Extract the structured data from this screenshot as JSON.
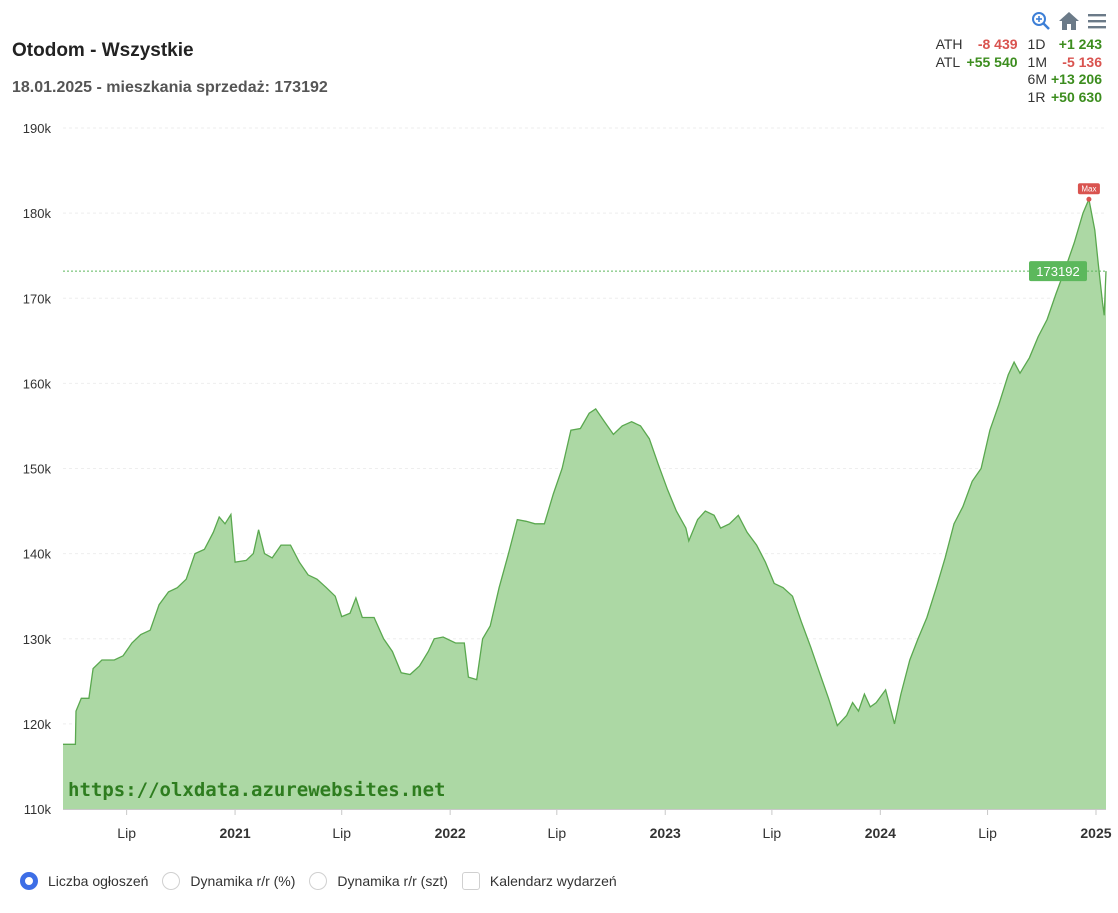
{
  "header": {
    "title": "Otodom - Wszystkie",
    "subtitle": "18.01.2025 - mieszkania sprzedaż: 173192"
  },
  "toolbar": {
    "icons": [
      "zoom-icon",
      "home-icon",
      "menu-icon"
    ]
  },
  "stats": [
    {
      "label": "ATH",
      "value": "-8 439",
      "sign": "neg",
      "label2": "1D",
      "value2": "+1 243",
      "sign2": "pos"
    },
    {
      "label": "ATL",
      "value": "+55 540",
      "sign": "pos",
      "label2": "1M",
      "value2": "-5 136",
      "sign2": "neg"
    },
    {
      "label": "",
      "value": "",
      "sign": "",
      "label2": "6M",
      "value2": "+13 206",
      "sign2": "pos"
    },
    {
      "label": "",
      "value": "",
      "sign": "",
      "label2": "1R",
      "value2": "+50 630",
      "sign2": "pos"
    }
  ],
  "watermark": "https://olxdata.azurewebsites.net",
  "legend": [
    {
      "label": "Liczba ogłoszeń",
      "type": "radio",
      "checked": true
    },
    {
      "label": "Dynamika r/r (%)",
      "type": "radio",
      "checked": false
    },
    {
      "label": "Dynamika r/r (szt)",
      "type": "radio",
      "checked": false
    },
    {
      "label": "Kalendarz wydarzeń",
      "type": "checkbox",
      "checked": false
    }
  ],
  "colors": {
    "fill": "#acd8a4",
    "line": "#5aa84f",
    "current_label_bg": "#5cb85c",
    "max_label_bg": "#d9534f"
  },
  "chart_data": {
    "type": "area",
    "y_ticks": [
      "110k",
      "120k",
      "130k",
      "140k",
      "150k",
      "160k",
      "170k",
      "180k",
      "190k"
    ],
    "ylim": [
      110000,
      190000
    ],
    "xlim": [
      "2020-03-15",
      "2025-01-18"
    ],
    "x_ticks": [
      {
        "date": "2020-07-01",
        "label": "Lip",
        "bold": false
      },
      {
        "date": "2021-01-01",
        "label": "2021",
        "bold": true
      },
      {
        "date": "2021-07-01",
        "label": "Lip",
        "bold": false
      },
      {
        "date": "2022-01-01",
        "label": "2022",
        "bold": true
      },
      {
        "date": "2022-07-01",
        "label": "Lip",
        "bold": false
      },
      {
        "date": "2023-01-01",
        "label": "2023",
        "bold": true
      },
      {
        "date": "2023-07-01",
        "label": "Lip",
        "bold": false
      },
      {
        "date": "2024-01-01",
        "label": "2024",
        "bold": true
      },
      {
        "date": "2024-07-01",
        "label": "Lip",
        "bold": false
      },
      {
        "date": "2025-01-01",
        "label": "2025",
        "bold": true
      }
    ],
    "points": [
      [
        "2020-03-15",
        117600
      ],
      [
        "2020-04-05",
        117600
      ],
      [
        "2020-04-06",
        121500
      ],
      [
        "2020-04-15",
        123000
      ],
      [
        "2020-04-28",
        123000
      ],
      [
        "2020-05-05",
        126500
      ],
      [
        "2020-05-20",
        127500
      ],
      [
        "2020-06-10",
        127500
      ],
      [
        "2020-06-25",
        128000
      ],
      [
        "2020-07-10",
        129500
      ],
      [
        "2020-07-25",
        130500
      ],
      [
        "2020-08-10",
        131000
      ],
      [
        "2020-08-25",
        134000
      ],
      [
        "2020-09-10",
        135500
      ],
      [
        "2020-09-25",
        136000
      ],
      [
        "2020-10-10",
        137000
      ],
      [
        "2020-10-25",
        140000
      ],
      [
        "2020-11-10",
        140500
      ],
      [
        "2020-11-25",
        142500
      ],
      [
        "2020-12-05",
        144300
      ],
      [
        "2020-12-15",
        143500
      ],
      [
        "2020-12-25",
        144600
      ],
      [
        "2021-01-01",
        139000
      ],
      [
        "2021-01-20",
        139200
      ],
      [
        "2021-02-01",
        140000
      ],
      [
        "2021-02-10",
        142800
      ],
      [
        "2021-02-20",
        140000
      ],
      [
        "2021-03-05",
        139500
      ],
      [
        "2021-03-20",
        141000
      ],
      [
        "2021-04-05",
        141000
      ],
      [
        "2021-04-20",
        139000
      ],
      [
        "2021-05-05",
        137500
      ],
      [
        "2021-05-20",
        137000
      ],
      [
        "2021-06-05",
        136000
      ],
      [
        "2021-06-20",
        135000
      ],
      [
        "2021-07-01",
        132600
      ],
      [
        "2021-07-15",
        133000
      ],
      [
        "2021-07-25",
        134800
      ],
      [
        "2021-08-05",
        132500
      ],
      [
        "2021-08-25",
        132500
      ],
      [
        "2021-09-10",
        130000
      ],
      [
        "2021-09-25",
        128500
      ],
      [
        "2021-10-10",
        126000
      ],
      [
        "2021-10-25",
        125800
      ],
      [
        "2021-11-10",
        126800
      ],
      [
        "2021-11-25",
        128500
      ],
      [
        "2021-12-05",
        130000
      ],
      [
        "2021-12-20",
        130200
      ],
      [
        "2022-01-10",
        129500
      ],
      [
        "2022-01-25",
        129500
      ],
      [
        "2022-02-01",
        125500
      ],
      [
        "2022-02-15",
        125200
      ],
      [
        "2022-02-25",
        130000
      ],
      [
        "2022-03-10",
        131500
      ],
      [
        "2022-03-25",
        136000
      ],
      [
        "2022-04-10",
        140000
      ],
      [
        "2022-04-25",
        144000
      ],
      [
        "2022-05-10",
        143800
      ],
      [
        "2022-05-25",
        143500
      ],
      [
        "2022-06-10",
        143500
      ],
      [
        "2022-06-25",
        147000
      ],
      [
        "2022-07-10",
        150000
      ],
      [
        "2022-07-25",
        154500
      ],
      [
        "2022-08-10",
        154700
      ],
      [
        "2022-08-25",
        156500
      ],
      [
        "2022-09-05",
        157000
      ],
      [
        "2022-09-20",
        155500
      ],
      [
        "2022-10-05",
        154000
      ],
      [
        "2022-10-20",
        155000
      ],
      [
        "2022-11-05",
        155500
      ],
      [
        "2022-11-20",
        155000
      ],
      [
        "2022-12-05",
        153500
      ],
      [
        "2022-12-20",
        150500
      ],
      [
        "2023-01-05",
        147500
      ],
      [
        "2023-01-20",
        145000
      ],
      [
        "2023-02-05",
        143000
      ],
      [
        "2023-02-10",
        141500
      ],
      [
        "2023-02-25",
        144000
      ],
      [
        "2023-03-10",
        145000
      ],
      [
        "2023-03-25",
        144500
      ],
      [
        "2023-04-05",
        143000
      ],
      [
        "2023-04-20",
        143500
      ],
      [
        "2023-05-05",
        144500
      ],
      [
        "2023-05-20",
        142500
      ],
      [
        "2023-06-05",
        141000
      ],
      [
        "2023-06-20",
        139000
      ],
      [
        "2023-07-05",
        136500
      ],
      [
        "2023-07-20",
        136000
      ],
      [
        "2023-08-05",
        135000
      ],
      [
        "2023-08-20",
        132000
      ],
      [
        "2023-09-05",
        129000
      ],
      [
        "2023-09-20",
        126000
      ],
      [
        "2023-10-05",
        123000
      ],
      [
        "2023-10-20",
        119800
      ],
      [
        "2023-11-05",
        121000
      ],
      [
        "2023-11-15",
        122500
      ],
      [
        "2023-11-25",
        121500
      ],
      [
        "2023-12-05",
        123500
      ],
      [
        "2023-12-15",
        122000
      ],
      [
        "2023-12-25",
        122500
      ],
      [
        "2024-01-10",
        124000
      ],
      [
        "2024-01-25",
        120000
      ],
      [
        "2024-02-05",
        123500
      ],
      [
        "2024-02-20",
        127500
      ],
      [
        "2024-03-05",
        130000
      ],
      [
        "2024-03-20",
        132500
      ],
      [
        "2024-04-05",
        136000
      ],
      [
        "2024-04-20",
        139500
      ],
      [
        "2024-05-05",
        143500
      ],
      [
        "2024-05-20",
        145500
      ],
      [
        "2024-06-05",
        148500
      ],
      [
        "2024-06-20",
        150000
      ],
      [
        "2024-07-05",
        154500
      ],
      [
        "2024-07-20",
        157500
      ],
      [
        "2024-08-05",
        161000
      ],
      [
        "2024-08-15",
        162500
      ],
      [
        "2024-08-25",
        161200
      ],
      [
        "2024-09-10",
        163000
      ],
      [
        "2024-09-25",
        165500
      ],
      [
        "2024-10-10",
        167500
      ],
      [
        "2024-10-25",
        170500
      ],
      [
        "2024-11-10",
        173500
      ],
      [
        "2024-11-25",
        176500
      ],
      [
        "2024-12-10",
        180000
      ],
      [
        "2024-12-20",
        181631
      ],
      [
        "2024-12-30",
        178000
      ],
      [
        "2025-01-05",
        174000
      ],
      [
        "2025-01-12",
        169500
      ],
      [
        "2025-01-15",
        168000
      ],
      [
        "2025-01-17",
        171500
      ],
      [
        "2025-01-18",
        173192
      ]
    ],
    "current": {
      "value": 173192,
      "label": "173192"
    },
    "max": {
      "date": "2024-12-20",
      "value": 181631,
      "label": "Max"
    },
    "grid": true,
    "legend_position": "bottom"
  }
}
